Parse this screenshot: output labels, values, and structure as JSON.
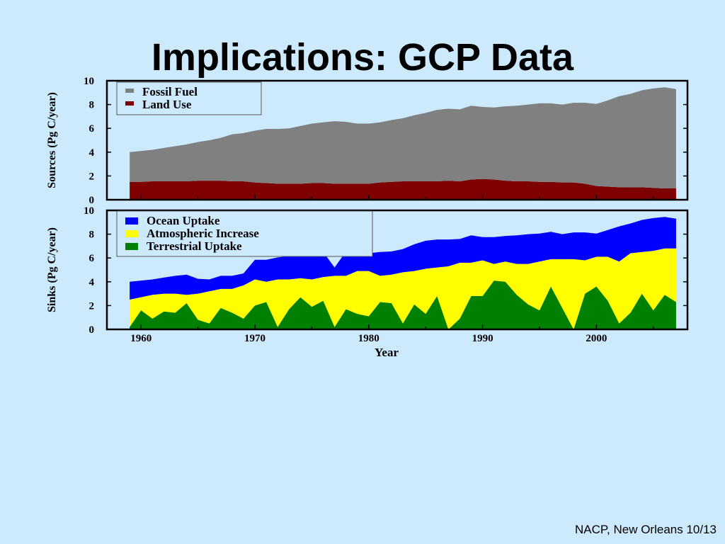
{
  "slide": {
    "title": "Implications: GCP Data",
    "footer": "NACP, New Orleans 10/13"
  },
  "colors": {
    "background": "#cde9fc",
    "fossil_fuel": "#808080",
    "land_use": "#7f0000",
    "ocean_uptake": "#0000ff",
    "atmospheric_increase": "#ffff00",
    "terrestrial_uptake": "#008000"
  },
  "chart_data": [
    {
      "type": "area",
      "stacked": true,
      "ylabel": "Sources (Pg C/year)",
      "xlabel": "",
      "xlim": [
        1957,
        2008
      ],
      "ylim": [
        0,
        10
      ],
      "yticks": [
        "0",
        "2",
        "4",
        "6",
        "8",
        "10"
      ],
      "xticks": [],
      "legend_position": "top-left",
      "x": [
        1959,
        1960,
        1961,
        1962,
        1963,
        1964,
        1965,
        1966,
        1967,
        1968,
        1969,
        1970,
        1971,
        1972,
        1973,
        1974,
        1975,
        1976,
        1977,
        1978,
        1979,
        1980,
        1981,
        1982,
        1983,
        1984,
        1985,
        1986,
        1987,
        1988,
        1989,
        1990,
        1991,
        1992,
        1993,
        1994,
        1995,
        1996,
        1997,
        1998,
        1999,
        2000,
        2001,
        2002,
        2003,
        2004,
        2005,
        2006,
        2007
      ],
      "series": [
        {
          "name": "Land Use",
          "values": [
            1.5,
            1.5,
            1.55,
            1.55,
            1.55,
            1.55,
            1.6,
            1.6,
            1.6,
            1.55,
            1.55,
            1.45,
            1.4,
            1.35,
            1.35,
            1.35,
            1.4,
            1.4,
            1.35,
            1.35,
            1.35,
            1.35,
            1.45,
            1.5,
            1.55,
            1.55,
            1.55,
            1.55,
            1.6,
            1.55,
            1.7,
            1.75,
            1.7,
            1.6,
            1.55,
            1.55,
            1.5,
            1.5,
            1.45,
            1.45,
            1.35,
            1.15,
            1.1,
            1.05,
            1.05,
            1.05,
            1.0,
            0.95,
            0.95
          ]
        },
        {
          "name": "Fossil Fuel",
          "values": [
            2.5,
            2.6,
            2.65,
            2.8,
            2.95,
            3.1,
            3.25,
            3.4,
            3.6,
            3.95,
            4.05,
            4.35,
            4.55,
            4.6,
            4.65,
            4.85,
            5.0,
            5.1,
            5.25,
            5.2,
            5.05,
            5.05,
            5.05,
            5.2,
            5.3,
            5.55,
            5.75,
            6.0,
            6.05,
            6.05,
            6.2,
            6.05,
            6.05,
            6.25,
            6.35,
            6.45,
            6.6,
            6.6,
            6.55,
            6.7,
            6.8,
            6.9,
            7.25,
            7.65,
            7.85,
            8.15,
            8.35,
            8.5,
            8.35
          ]
        }
      ]
    },
    {
      "type": "area",
      "stacked": true,
      "ylabel": "Sinks (Pg C/year)",
      "xlabel": "Year",
      "xlim": [
        1957,
        2008
      ],
      "ylim": [
        0,
        10
      ],
      "yticks": [
        "0",
        "2",
        "4",
        "6",
        "8",
        "10"
      ],
      "xticks": [
        "1960",
        "1970",
        "1980",
        "1990",
        "2000"
      ],
      "legend_position": "top-left",
      "x": [
        1959,
        1960,
        1961,
        1962,
        1963,
        1964,
        1965,
        1966,
        1967,
        1968,
        1969,
        1970,
        1971,
        1972,
        1973,
        1974,
        1975,
        1976,
        1977,
        1978,
        1979,
        1980,
        1981,
        1982,
        1983,
        1984,
        1985,
        1986,
        1987,
        1988,
        1989,
        1990,
        1991,
        1992,
        1993,
        1994,
        1995,
        1996,
        1997,
        1998,
        1999,
        2000,
        2001,
        2002,
        2003,
        2004,
        2005,
        2006,
        2007
      ],
      "series": [
        {
          "name": "Terrestrial Uptake",
          "values": [
            0.2,
            1.6,
            0.9,
            1.5,
            1.4,
            2.2,
            0.8,
            0.5,
            1.8,
            1.4,
            0.9,
            2.0,
            2.3,
            0.2,
            1.7,
            2.7,
            1.9,
            2.4,
            0.2,
            1.7,
            1.3,
            1.1,
            2.3,
            2.2,
            0.5,
            2.1,
            1.3,
            2.8,
            0.0,
            0.9,
            2.8,
            2.8,
            4.1,
            4.0,
            2.9,
            2.1,
            1.6,
            3.6,
            1.8,
            0.0,
            3.0,
            3.6,
            2.4,
            0.5,
            1.4,
            3.0,
            1.6,
            2.9,
            2.3
          ]
        },
        {
          "name": "Atmospheric Increase",
          "values": [
            2.3,
            1.1,
            2.0,
            1.5,
            1.6,
            0.7,
            2.2,
            2.7,
            1.6,
            2.0,
            2.8,
            2.2,
            1.7,
            4.0,
            2.5,
            1.6,
            2.3,
            2.0,
            4.3,
            2.8,
            3.6,
            3.8,
            2.2,
            2.4,
            4.3,
            2.8,
            3.8,
            2.4,
            5.3,
            4.7,
            2.8,
            3.0,
            1.4,
            1.7,
            2.6,
            3.4,
            4.1,
            2.3,
            4.1,
            5.9,
            2.8,
            2.5,
            3.7,
            5.2,
            5.0,
            3.5,
            5.0,
            3.9,
            4.5
          ]
        },
        {
          "name": "Ocean Uptake",
          "values": [
            1.5,
            1.4,
            1.3,
            1.35,
            1.5,
            1.7,
            1.25,
            1.0,
            1.1,
            1.1,
            1.0,
            1.65,
            1.85,
            1.85,
            1.95,
            1.9,
            2.05,
            2.1,
            0.7,
            2.05,
            1.55,
            1.5,
            2.0,
            1.95,
            1.95,
            2.25,
            2.35,
            2.35,
            2.25,
            2.0,
            2.3,
            1.95,
            2.25,
            2.15,
            2.4,
            2.5,
            2.35,
            2.3,
            2.1,
            2.25,
            2.35,
            1.95,
            2.25,
            2.95,
            2.5,
            2.7,
            2.75,
            2.65,
            2.5
          ]
        }
      ]
    }
  ]
}
